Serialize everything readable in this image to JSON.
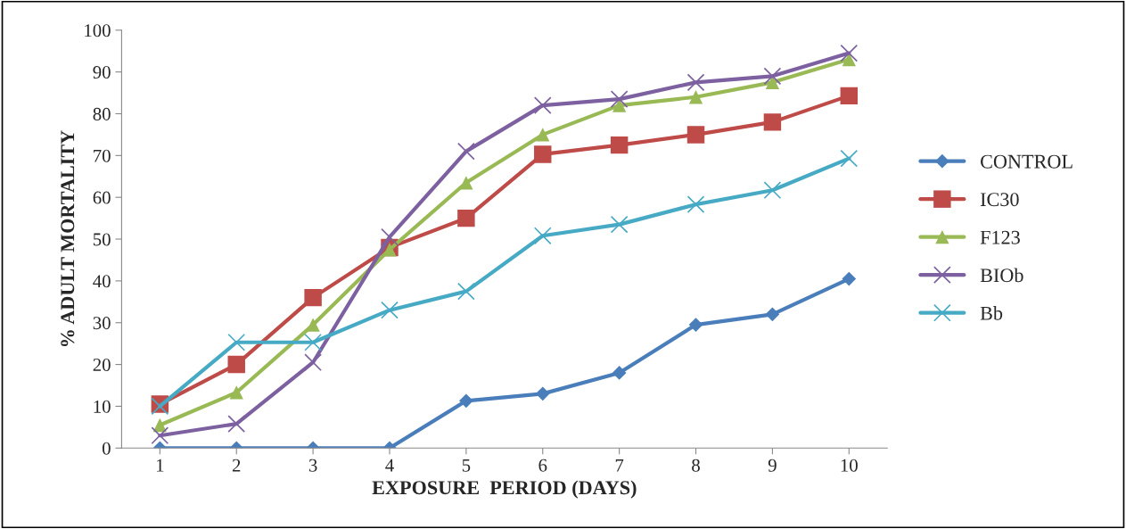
{
  "chart_data": {
    "type": "line",
    "xlabel": "EXPOSURE  PERIOD (DAYS)",
    "ylabel": "% ADULT MORTALITY",
    "categories": [
      "1",
      "2",
      "3",
      "4",
      "5",
      "6",
      "7",
      "8",
      "9",
      "10"
    ],
    "ylim": [
      0,
      100
    ],
    "yticks": [
      0,
      10,
      20,
      30,
      40,
      50,
      60,
      70,
      80,
      90,
      100
    ],
    "grid": false,
    "legend": "right",
    "series": [
      {
        "name": "CONTROL",
        "color": "#4a7ebb",
        "marker": "diamond",
        "values": [
          0,
          0,
          0,
          0,
          11.3,
          13,
          18,
          29.5,
          32,
          40.5
        ]
      },
      {
        "name": "IC30",
        "color": "#be4b48",
        "marker": "square",
        "values": [
          10.5,
          20,
          36,
          48,
          55,
          70.3,
          72.5,
          75,
          78,
          84.3
        ]
      },
      {
        "name": "F123",
        "color": "#98b954",
        "marker": "triangle",
        "values": [
          5.5,
          13.3,
          29.5,
          47.5,
          63.5,
          75,
          82,
          84,
          87.5,
          93
        ]
      },
      {
        "name": "BIOb",
        "color": "#7d60a0",
        "marker": "cross",
        "values": [
          3,
          5.8,
          20.5,
          50.5,
          71,
          82,
          83.5,
          87.5,
          89,
          94.5
        ]
      },
      {
        "name": "Bb",
        "color": "#46aac5",
        "marker": "cross",
        "values": [
          10,
          25.3,
          25.3,
          33,
          37.5,
          50.8,
          53.5,
          58.3,
          61.7,
          69.3
        ]
      }
    ]
  }
}
